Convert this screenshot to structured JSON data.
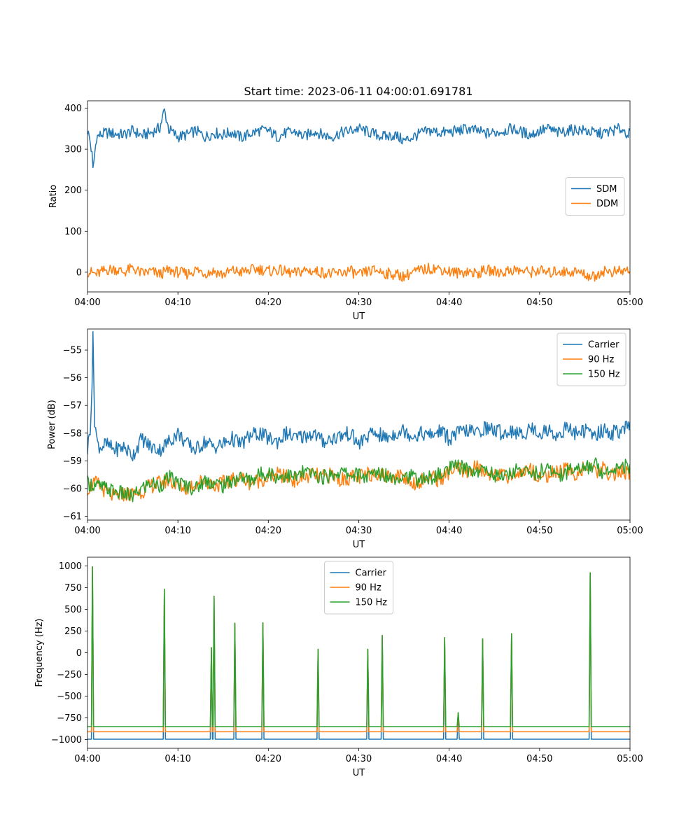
{
  "figure": {
    "title": "Start time: 2023-06-11 04:00:01.691781"
  },
  "chart_data": [
    {
      "type": "line",
      "xlabel": "UT",
      "ylabel": "Ratio",
      "xlim": [
        0,
        60
      ],
      "ylim": [
        -48,
        418
      ],
      "x_tick_labels": [
        "04:00",
        "04:10",
        "04:20",
        "04:30",
        "04:40",
        "04:50",
        "05:00"
      ],
      "y_ticks": [
        0,
        100,
        200,
        300,
        400
      ],
      "y_tick_labels": [
        "0",
        "100",
        "200",
        "300",
        "400"
      ],
      "legend_position": "center-right",
      "colors": [
        "#1f77b4",
        "#ff7f0e"
      ],
      "series": [
        {
          "name": "SDM",
          "x": [
            0,
            0.25,
            0.5,
            0.6,
            1,
            1.5,
            2,
            3,
            4,
            5,
            6,
            7,
            8,
            8.5,
            9,
            10,
            11,
            12,
            13,
            14,
            15,
            16,
            17,
            18,
            19,
            20,
            21,
            22,
            23,
            24,
            25,
            26,
            27,
            28,
            29,
            30,
            31,
            32,
            33,
            34,
            35,
            36,
            37,
            38,
            39,
            40,
            41,
            42,
            43,
            44,
            45,
            46,
            47,
            48,
            49,
            50,
            51,
            52,
            53,
            54,
            55,
            56,
            57,
            58,
            59,
            60
          ],
          "values": [
            345,
            325,
            285,
            248,
            330,
            335,
            340,
            338,
            335,
            345,
            333,
            340,
            352,
            395,
            348,
            330,
            335,
            345,
            330,
            340,
            335,
            342,
            328,
            338,
            345,
            345,
            330,
            340,
            342,
            330,
            345,
            335,
            330,
            340,
            345,
            350,
            342,
            335,
            330,
            335,
            320,
            330,
            340,
            345,
            340,
            342,
            345,
            350,
            345,
            338,
            340,
            345,
            350,
            342,
            335,
            345,
            350,
            340,
            345,
            348,
            345,
            340,
            338,
            345,
            350,
            335
          ]
        },
        {
          "name": "DDM",
          "x": [
            0,
            1,
            2,
            3,
            4,
            5,
            6,
            7,
            8,
            9,
            10,
            11,
            12,
            13,
            14,
            15,
            16,
            17,
            18,
            19,
            20,
            21,
            22,
            23,
            24,
            25,
            26,
            27,
            28,
            29,
            30,
            31,
            32,
            33,
            34,
            35,
            36,
            37,
            38,
            39,
            40,
            41,
            42,
            43,
            44,
            45,
            46,
            47,
            48,
            49,
            50,
            51,
            52,
            53,
            54,
            55,
            56,
            57,
            58,
            59,
            60
          ],
          "values": [
            2,
            -5,
            5,
            8,
            0,
            10,
            -3,
            2,
            -5,
            5,
            0,
            -4,
            6,
            -2,
            3,
            -6,
            4,
            0,
            5,
            8,
            2,
            6,
            0,
            -3,
            5,
            2,
            0,
            -5,
            -2,
            4,
            -8,
            2,
            5,
            -3,
            -5,
            -10,
            0,
            5,
            10,
            8,
            2,
            -2,
            3,
            -4,
            5,
            2,
            0,
            6,
            3,
            0,
            5,
            -3,
            4,
            0,
            2,
            -5,
            -12,
            4,
            0,
            2,
            5
          ]
        }
      ]
    },
    {
      "type": "line",
      "xlabel": "UT",
      "ylabel": "Power (dB)",
      "xlim": [
        0,
        60
      ],
      "ylim": [
        -61.14,
        -54.24
      ],
      "x_tick_labels": [
        "04:00",
        "04:10",
        "04:20",
        "04:30",
        "04:40",
        "04:50",
        "05:00"
      ],
      "y_ticks": [
        -61,
        -60,
        -59,
        -58,
        -57,
        -56,
        -55
      ],
      "y_tick_labels": [
        "−61",
        "−60",
        "−59",
        "−58",
        "−57",
        "−56",
        "−55"
      ],
      "legend_position": "top-right",
      "colors": [
        "#1f77b4",
        "#ff7f0e",
        "#2ca02c"
      ],
      "series": [
        {
          "name": "Carrier",
          "x": [
            0,
            0.3,
            0.5,
            0.6,
            0.8,
            1.1,
            1.5,
            2,
            3,
            4,
            5,
            6,
            7,
            8,
            9,
            10,
            11,
            12,
            13,
            14,
            15,
            16,
            17,
            18,
            19,
            20,
            21,
            22,
            23,
            24,
            25,
            26,
            27,
            28,
            29,
            30,
            31,
            32,
            33,
            34,
            35,
            36,
            37,
            38,
            39,
            40,
            41,
            42,
            43,
            44,
            45,
            46,
            47,
            48,
            49,
            50,
            51,
            52,
            53,
            54,
            55,
            56,
            57,
            58,
            59,
            60
          ],
          "values": [
            -58.6,
            -57.8,
            -56.2,
            -54.6,
            -57.5,
            -58.4,
            -58.5,
            -58.4,
            -58.6,
            -58.5,
            -58.8,
            -58.2,
            -58.5,
            -58.6,
            -58.3,
            -58.0,
            -58.4,
            -58.6,
            -58.3,
            -58.5,
            -58.4,
            -58.2,
            -58.4,
            -58.1,
            -58.0,
            -58.2,
            -58.3,
            -58.0,
            -58.2,
            -58.1,
            -58.0,
            -58.3,
            -58.2,
            -58.1,
            -58.0,
            -58.4,
            -58.1,
            -58.0,
            -58.2,
            -58.0,
            -57.9,
            -58.1,
            -58.0,
            -58.1,
            -57.9,
            -58.2,
            -58.0,
            -57.9,
            -58.0,
            -57.8,
            -57.9,
            -58.0,
            -57.9,
            -58.1,
            -57.8,
            -58.0,
            -57.9,
            -58.1,
            -57.8,
            -58.0,
            -57.9,
            -58.1,
            -57.9,
            -58.0,
            -57.9,
            -57.8
          ]
        },
        {
          "name": "90 Hz",
          "x": [
            0,
            1,
            2,
            3,
            4,
            5,
            6,
            7,
            8,
            9,
            10,
            11,
            12,
            13,
            14,
            15,
            16,
            17,
            18,
            19,
            20,
            21,
            22,
            23,
            24,
            25,
            26,
            27,
            28,
            29,
            30,
            31,
            32,
            33,
            34,
            35,
            36,
            37,
            38,
            39,
            40,
            41,
            42,
            43,
            44,
            45,
            46,
            47,
            48,
            49,
            50,
            51,
            52,
            53,
            54,
            55,
            56,
            57,
            58,
            59,
            60
          ],
          "values": [
            -60.0,
            -59.8,
            -60.1,
            -60.3,
            -60.2,
            -60.2,
            -60.1,
            -59.9,
            -59.8,
            -59.7,
            -59.9,
            -60.0,
            -59.8,
            -59.7,
            -59.9,
            -59.8,
            -59.7,
            -59.6,
            -59.8,
            -59.7,
            -59.6,
            -59.5,
            -59.6,
            -59.7,
            -59.6,
            -59.5,
            -59.6,
            -59.5,
            -59.7,
            -59.6,
            -59.6,
            -59.5,
            -59.4,
            -59.6,
            -59.5,
            -59.6,
            -59.8,
            -59.7,
            -59.6,
            -59.7,
            -59.4,
            -59.3,
            -59.4,
            -59.2,
            -59.5,
            -59.4,
            -59.6,
            -59.5,
            -59.4,
            -59.3,
            -59.6,
            -59.5,
            -59.4,
            -59.3,
            -59.5,
            -59.2,
            -59.4,
            -59.3,
            -59.5,
            -59.4,
            -59.5
          ]
        },
        {
          "name": "150 Hz",
          "x": [
            0,
            1,
            2,
            3,
            4,
            5,
            6,
            7,
            8,
            9,
            10,
            11,
            12,
            13,
            14,
            15,
            16,
            17,
            18,
            19,
            20,
            21,
            22,
            23,
            24,
            25,
            26,
            27,
            28,
            29,
            30,
            31,
            32,
            33,
            34,
            35,
            36,
            37,
            38,
            39,
            40,
            41,
            42,
            43,
            44,
            45,
            46,
            47,
            48,
            49,
            50,
            51,
            52,
            53,
            54,
            55,
            56,
            57,
            58,
            59,
            60
          ],
          "values": [
            -59.8,
            -59.9,
            -60.0,
            -60.1,
            -60.2,
            -60.3,
            -60.0,
            -59.8,
            -59.9,
            -59.6,
            -59.8,
            -59.9,
            -60.0,
            -59.7,
            -59.8,
            -59.9,
            -59.7,
            -59.6,
            -59.7,
            -59.5,
            -59.4,
            -59.6,
            -59.5,
            -59.6,
            -59.4,
            -59.5,
            -59.6,
            -59.5,
            -59.4,
            -59.5,
            -59.5,
            -59.6,
            -59.4,
            -59.5,
            -59.6,
            -59.5,
            -59.6,
            -59.7,
            -59.6,
            -59.5,
            -59.3,
            -59.2,
            -59.3,
            -59.4,
            -59.3,
            -59.5,
            -59.6,
            -59.4,
            -59.3,
            -59.5,
            -59.4,
            -59.3,
            -59.5,
            -59.4,
            -59.2,
            -59.3,
            -59.1,
            -59.4,
            -59.3,
            -59.1,
            -59.3
          ]
        }
      ]
    },
    {
      "type": "line",
      "xlabel": "UT",
      "ylabel": "Frequency (Hz)",
      "xlim": [
        0,
        60
      ],
      "ylim": [
        -1100,
        1100
      ],
      "x_tick_labels": [
        "04:00",
        "04:10",
        "04:20",
        "04:30",
        "04:40",
        "04:50",
        "05:00"
      ],
      "y_ticks": [
        -1000,
        -750,
        -500,
        -250,
        0,
        250,
        500,
        750,
        1000
      ],
      "y_tick_labels": [
        "−1000",
        "−750",
        "−500",
        "−250",
        "0",
        "250",
        "500",
        "750",
        "1000"
      ],
      "legend_position": "top-center",
      "colors": [
        "#1f77b4",
        "#ff7f0e",
        "#2ca02c"
      ],
      "series": [
        {
          "name": "Carrier",
          "base": -995,
          "spikes": [
            {
              "x": 0.55,
              "peak": 990
            },
            {
              "x": 8.5,
              "peak": 730
            },
            {
              "x": 13.7,
              "peak": 60
            },
            {
              "x": 14.0,
              "peak": 650
            },
            {
              "x": 16.3,
              "peak": 340
            },
            {
              "x": 19.4,
              "peak": 345
            },
            {
              "x": 25.5,
              "peak": 40
            },
            {
              "x": 31.0,
              "peak": 40
            },
            {
              "x": 32.6,
              "peak": 200
            },
            {
              "x": 39.5,
              "peak": 175
            },
            {
              "x": 41.0,
              "peak": -690
            },
            {
              "x": 43.7,
              "peak": 160
            },
            {
              "x": 46.9,
              "peak": 220
            },
            {
              "x": 55.6,
              "peak": 920
            }
          ]
        },
        {
          "name": "90 Hz",
          "base": -910,
          "spikes": [
            {
              "x": 0.55,
              "peak": 990
            },
            {
              "x": 8.5,
              "peak": 730
            },
            {
              "x": 13.7,
              "peak": 60
            },
            {
              "x": 14.0,
              "peak": 650
            },
            {
              "x": 16.3,
              "peak": 340
            },
            {
              "x": 19.4,
              "peak": 345
            },
            {
              "x": 25.5,
              "peak": 40
            },
            {
              "x": 31.0,
              "peak": 40
            },
            {
              "x": 32.6,
              "peak": 200
            },
            {
              "x": 39.5,
              "peak": 175
            },
            {
              "x": 41.0,
              "peak": -690
            },
            {
              "x": 43.7,
              "peak": 160
            },
            {
              "x": 46.9,
              "peak": 220
            },
            {
              "x": 55.6,
              "peak": 920
            }
          ]
        },
        {
          "name": "150 Hz",
          "base": -850,
          "spikes": [
            {
              "x": 0.55,
              "peak": 990
            },
            {
              "x": 8.5,
              "peak": 730
            },
            {
              "x": 13.7,
              "peak": 60
            },
            {
              "x": 14.0,
              "peak": 650
            },
            {
              "x": 16.3,
              "peak": 340
            },
            {
              "x": 19.4,
              "peak": 345
            },
            {
              "x": 25.5,
              "peak": 40
            },
            {
              "x": 31.0,
              "peak": 40
            },
            {
              "x": 32.6,
              "peak": 200
            },
            {
              "x": 39.5,
              "peak": 175
            },
            {
              "x": 41.0,
              "peak": -690
            },
            {
              "x": 43.7,
              "peak": 160
            },
            {
              "x": 46.9,
              "peak": 220
            },
            {
              "x": 55.6,
              "peak": 920
            }
          ]
        }
      ]
    }
  ]
}
